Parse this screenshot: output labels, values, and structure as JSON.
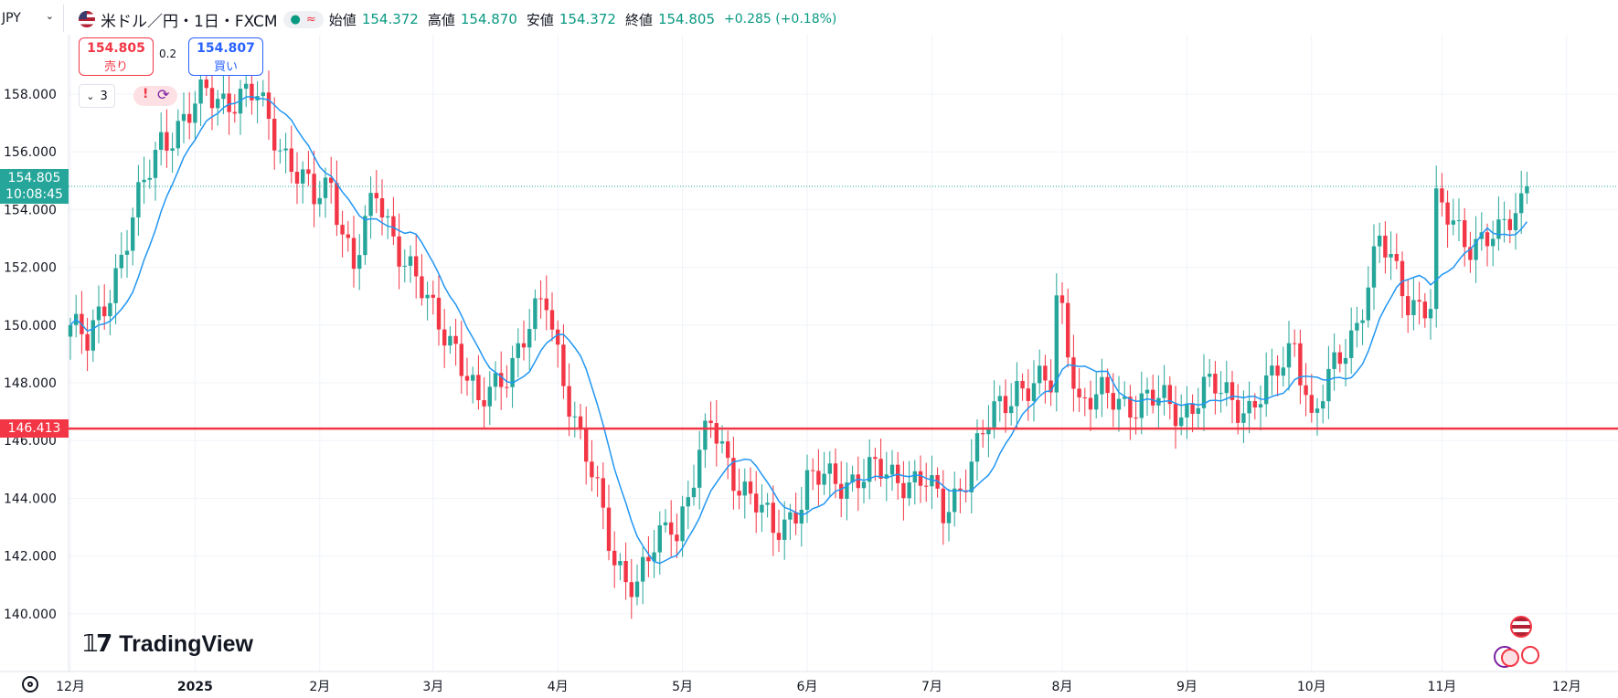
{
  "symbol_box": "JPY",
  "header": {
    "title": "米ドル／円・1日・FXCM",
    "ohlc": [
      {
        "label": "始値",
        "value": "154.372"
      },
      {
        "label": "高値",
        "value": "154.870"
      },
      {
        "label": "安値",
        "value": "154.372"
      },
      {
        "label": "終値",
        "value": "154.805"
      }
    ],
    "change": "+0.285 (+0.18%)",
    "status_glyph": "≈"
  },
  "order": {
    "sell_price": "154.805",
    "sell_label": "売り",
    "spread": "0.2",
    "buy_price": "154.807",
    "buy_label": "買い"
  },
  "indicators_collapsed": "3",
  "price_tags": {
    "current_price": "154.805",
    "countdown": "10:08:45",
    "horizontal_line": "146.413"
  },
  "logo": "TradingView",
  "colors": {
    "up": "#26a69a",
    "down": "#f23645",
    "ma": "#2196f3",
    "line": "#f23645",
    "grid": "#f0f3fa"
  },
  "icons": [
    "us-flag-icon",
    "market-open-dot-icon",
    "delayed-data-icon",
    "alert-icon",
    "replay-icon",
    "settings-gear-icon",
    "economic-event-icon"
  ],
  "chart_data": {
    "type": "candlestick",
    "y_ticks": [
      140.0,
      142.0,
      144.0,
      146.0,
      148.0,
      150.0,
      152.0,
      154.0,
      156.0,
      158.0
    ],
    "y_tick_labels": [
      "140.000",
      "142.000",
      "144.000",
      "146.000",
      "148.000",
      "150.000",
      "152.000",
      "154.000",
      "156.000",
      "158.000"
    ],
    "x_tick_labels": [
      "12月",
      "2025",
      "2月",
      "3月",
      "4月",
      "5月",
      "6月",
      "7月",
      "8月",
      "9月",
      "10月",
      "11月",
      "12月"
    ],
    "ylim": [
      138.5,
      160.5
    ],
    "horizontal_line": 146.413,
    "current_price": 154.805,
    "moving_average": "blue line, short-period MA",
    "monthly_closes": [
      {
        "month": "2024-12",
        "close": 157.2
      },
      {
        "month": "2025-01",
        "close": 154.2
      },
      {
        "month": "2025-02",
        "close": 150.6
      },
      {
        "month": "2025-03",
        "close": 149.9
      },
      {
        "month": "2025-04",
        "close": 143.0
      },
      {
        "month": "2025-05",
        "close": 144.0
      },
      {
        "month": "2025-06",
        "close": 144.5
      },
      {
        "month": "2025-07",
        "close": 150.7
      },
      {
        "month": "2025-08",
        "close": 147.0
      },
      {
        "month": "2025-09",
        "close": 147.9
      },
      {
        "month": "2025-10",
        "close": 154.0
      },
      {
        "month": "2025-11",
        "close": 154.805
      }
    ],
    "key_points": [
      {
        "date": "2024-11-29",
        "close": 150.0
      },
      {
        "date": "2024-12-04",
        "low": 148.7
      },
      {
        "date": "2024-12-20",
        "close": 156.5
      },
      {
        "date": "2025-01-10",
        "high": 158.8
      },
      {
        "date": "2025-02-03",
        "close": 155.0
      },
      {
        "date": "2025-02-10",
        "high": 154.8
      },
      {
        "date": "2025-03-11",
        "low": 146.5
      },
      {
        "date": "2025-04-01",
        "high": 151.2
      },
      {
        "date": "2025-04-21",
        "low": 139.9
      },
      {
        "date": "2025-05-12",
        "high": 148.6
      },
      {
        "date": "2025-05-26",
        "low": 142.1
      },
      {
        "date": "2025-06-23",
        "high": 148.0
      },
      {
        "date": "2025-07-01",
        "low": 142.7
      },
      {
        "date": "2025-07-31",
        "high": 150.9
      },
      {
        "date": "2025-09-17",
        "low": 145.5
      },
      {
        "date": "2025-10-09",
        "high": 153.3
      },
      {
        "date": "2025-10-17",
        "low": 149.4
      },
      {
        "date": "2025-11-13",
        "high": 155.0
      }
    ]
  }
}
